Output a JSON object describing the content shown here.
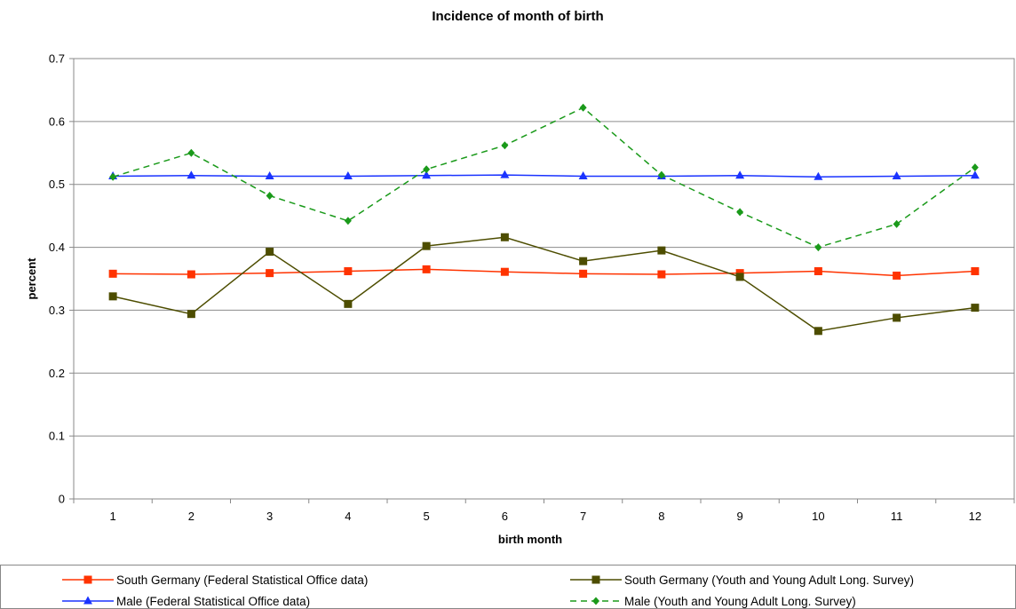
{
  "chart_data": {
    "type": "line",
    "title": "Incidence of month of birth",
    "xlabel": "birth month",
    "ylabel": "percent",
    "ylim": [
      0,
      0.7
    ],
    "yticks": [
      "0",
      "0.1",
      "0.2",
      "0.3",
      "0.4",
      "0.5",
      "0.6",
      "0.7"
    ],
    "categories": [
      "1",
      "2",
      "3",
      "4",
      "5",
      "6",
      "7",
      "8",
      "9",
      "10",
      "11",
      "12"
    ],
    "grid": "horizontal",
    "legend_position": "bottom",
    "series": [
      {
        "name": "South Germany (Federal Statistical Office data)",
        "color": "#ff3300",
        "marker": "square",
        "dash": "solid",
        "values": [
          0.358,
          0.357,
          0.359,
          0.362,
          0.365,
          0.361,
          0.358,
          0.357,
          0.359,
          0.362,
          0.355,
          0.362
        ]
      },
      {
        "name": "South Germany (Youth and Young Adult Long. Survey)",
        "color": "#4d4d00",
        "marker": "square",
        "dash": "solid",
        "values": [
          0.322,
          0.294,
          0.393,
          0.31,
          0.402,
          0.416,
          0.378,
          0.395,
          0.353,
          0.267,
          0.288,
          0.304
        ]
      },
      {
        "name": "Male (Federal Statistical Office data)",
        "color": "#1a33ff",
        "marker": "triangle",
        "dash": "solid",
        "values": [
          0.513,
          0.514,
          0.513,
          0.513,
          0.514,
          0.515,
          0.513,
          0.513,
          0.514,
          0.512,
          0.513,
          0.514
        ]
      },
      {
        "name": "Male (Youth and Young Adult Long. Survey)",
        "color": "#1a9a1a",
        "marker": "diamond",
        "dash": "dashed",
        "values": [
          0.512,
          0.55,
          0.482,
          0.442,
          0.524,
          0.562,
          0.622,
          0.515,
          0.456,
          0.4,
          0.437,
          0.527
        ]
      }
    ]
  }
}
